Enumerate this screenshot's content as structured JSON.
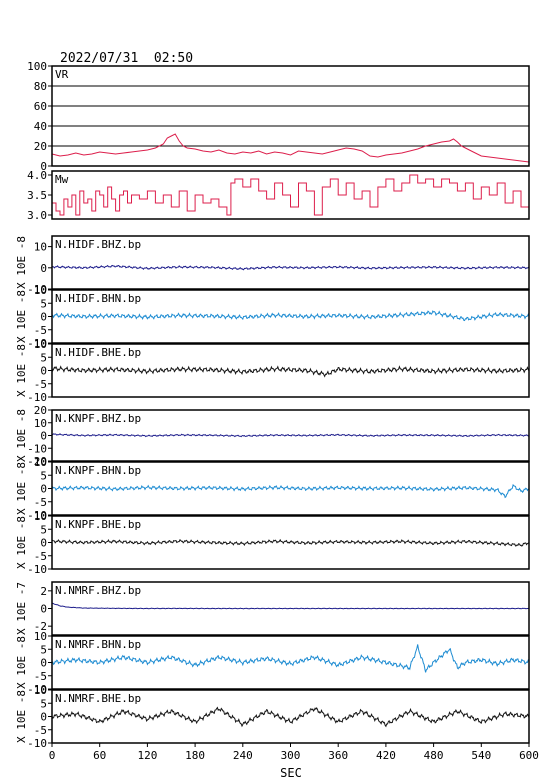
{
  "header": {
    "datetime": "2022/07/31  02:50"
  },
  "chart_data": {
    "type": "line",
    "xlabel": "SEC",
    "xlim": [
      0,
      600
    ],
    "xticks": [
      0,
      60,
      120,
      180,
      240,
      300,
      360,
      420,
      480,
      540,
      600
    ],
    "panels": [
      {
        "label": "VR",
        "ylabel": "",
        "ylim": [
          0,
          100
        ],
        "yticks": [
          0,
          20,
          40,
          60,
          80,
          100
        ],
        "grid": true,
        "color": "#dc1e4b",
        "x": [
          0,
          10,
          20,
          30,
          40,
          50,
          60,
          70,
          80,
          90,
          100,
          110,
          120,
          130,
          140,
          145,
          150,
          155,
          160,
          165,
          170,
          180,
          190,
          200,
          210,
          220,
          230,
          240,
          250,
          260,
          270,
          280,
          290,
          300,
          310,
          320,
          330,
          340,
          350,
          360,
          370,
          380,
          390,
          400,
          410,
          420,
          430,
          440,
          450,
          460,
          470,
          480,
          490,
          500,
          505,
          510,
          515,
          520,
          530,
          540,
          550,
          560,
          570,
          580,
          590,
          600
        ],
        "y": [
          12,
          10,
          11,
          13,
          11,
          12,
          14,
          13,
          12,
          13,
          14,
          15,
          16,
          18,
          22,
          28,
          30,
          32,
          25,
          20,
          18,
          17,
          15,
          14,
          16,
          13,
          12,
          14,
          13,
          15,
          12,
          14,
          13,
          11,
          15,
          14,
          13,
          12,
          14,
          16,
          18,
          17,
          15,
          10,
          9,
          11,
          12,
          13,
          15,
          17,
          20,
          22,
          24,
          25,
          27,
          24,
          20,
          18,
          14,
          10,
          9,
          8,
          7,
          6,
          5,
          4
        ]
      },
      {
        "label": "Mw",
        "ylabel": "",
        "ylim": [
          2.9,
          4.1
        ],
        "yticks": [
          3.0,
          3.5,
          4.0
        ],
        "grid": false,
        "color": "#dc1e4b",
        "x": [
          0,
          5,
          10,
          15,
          20,
          25,
          30,
          35,
          40,
          45,
          50,
          55,
          60,
          65,
          70,
          75,
          80,
          85,
          90,
          95,
          100,
          110,
          120,
          130,
          140,
          150,
          160,
          170,
          180,
          190,
          200,
          210,
          220,
          225,
          230,
          240,
          250,
          260,
          270,
          280,
          290,
          300,
          310,
          320,
          330,
          340,
          350,
          360,
          370,
          380,
          390,
          400,
          410,
          420,
          430,
          440,
          450,
          460,
          470,
          480,
          490,
          500,
          510,
          520,
          530,
          540,
          550,
          560,
          570,
          580,
          590,
          600
        ],
        "y": [
          3.3,
          3.1,
          3.0,
          3.4,
          3.2,
          3.5,
          3.0,
          3.6,
          3.3,
          3.4,
          3.1,
          3.6,
          3.5,
          3.2,
          3.7,
          3.4,
          3.1,
          3.5,
          3.6,
          3.3,
          3.5,
          3.4,
          3.6,
          3.3,
          3.5,
          3.2,
          3.6,
          3.1,
          3.5,
          3.3,
          3.4,
          3.2,
          3.0,
          3.8,
          3.9,
          3.7,
          3.9,
          3.6,
          3.4,
          3.8,
          3.5,
          3.2,
          3.8,
          3.6,
          3.0,
          3.7,
          3.9,
          3.5,
          3.8,
          3.4,
          3.6,
          3.2,
          3.7,
          3.9,
          3.6,
          3.8,
          4.0,
          3.8,
          3.9,
          3.7,
          3.9,
          3.8,
          3.6,
          3.8,
          3.4,
          3.7,
          3.5,
          3.8,
          3.3,
          3.6,
          3.2,
          3.1
        ]
      },
      {
        "label": "N.HIDF.BHZ.bp",
        "ylabel": "X 10E -8",
        "ylim": [
          -10,
          15
        ],
        "yticks": [
          -10,
          0,
          10
        ],
        "grid": false,
        "color": "#1e1e8c",
        "amp": 0.5,
        "x": [
          0,
          40,
          80,
          120,
          160,
          200,
          240,
          280,
          320,
          360,
          400,
          440,
          480,
          520,
          560,
          600
        ],
        "y": [
          0.5,
          0,
          0.8,
          -0.3,
          0.4,
          0.2,
          -0.5,
          0.3,
          0,
          0.4,
          -0.2,
          0.1,
          0.3,
          -0.2,
          0.2,
          0
        ]
      },
      {
        "label": "N.HIDF.BHN.bp",
        "ylabel": "X 10E -8",
        "ylim": [
          -10,
          10
        ],
        "yticks": [
          -10,
          -5,
          0,
          5,
          10
        ],
        "grid": false,
        "color": "#1e8cd2",
        "amp": 0.8,
        "x": [
          0,
          40,
          80,
          120,
          160,
          200,
          240,
          280,
          320,
          360,
          400,
          440,
          480,
          520,
          560,
          600
        ],
        "y": [
          0.5,
          0,
          0.3,
          -0.2,
          0.4,
          0.2,
          -0.3,
          0.5,
          0,
          0.4,
          -0.2,
          0.6,
          1.5,
          -1,
          0.8,
          0
        ]
      },
      {
        "label": "N.HIDF.BHE.bp",
        "ylabel": "X 10E -8",
        "ylim": [
          -10,
          10
        ],
        "yticks": [
          -10,
          -5,
          0,
          5,
          10
        ],
        "grid": false,
        "color": "#141414",
        "amp": 0.9,
        "x": [
          0,
          40,
          80,
          120,
          160,
          200,
          240,
          280,
          320,
          345,
          360,
          400,
          440,
          480,
          520,
          560,
          600
        ],
        "y": [
          0.8,
          0,
          0.4,
          -0.3,
          0.5,
          0.3,
          -0.5,
          0.6,
          0,
          -1.5,
          0.5,
          -0.4,
          0.6,
          -0.3,
          0.4,
          -0.2,
          0.3
        ]
      },
      {
        "label": "N.KNPF.BHZ.bp",
        "ylabel": "X 10E -8",
        "ylim": [
          -20,
          20
        ],
        "yticks": [
          -20,
          -10,
          0,
          10,
          20
        ],
        "grid": false,
        "color": "#1e1e8c",
        "amp": 0.6,
        "x": [
          0,
          40,
          80,
          120,
          160,
          200,
          240,
          280,
          320,
          360,
          400,
          440,
          480,
          520,
          560,
          600
        ],
        "y": [
          1,
          0,
          0.5,
          -0.3,
          0.4,
          0.2,
          -0.4,
          0.3,
          0,
          0.5,
          -0.2,
          0.3,
          0.2,
          -0.3,
          0.4,
          0
        ]
      },
      {
        "label": "N.KNPF.BHN.bp",
        "ylabel": "X 10E -8",
        "ylim": [
          -10,
          10
        ],
        "yticks": [
          -10,
          -5,
          0,
          5,
          10
        ],
        "grid": false,
        "color": "#1e8cd2",
        "amp": 0.7,
        "x": [
          0,
          40,
          80,
          120,
          160,
          200,
          240,
          280,
          320,
          360,
          400,
          440,
          480,
          520,
          560,
          570,
          580,
          590,
          600
        ],
        "y": [
          0,
          0.3,
          -0.2,
          0.4,
          0,
          0.3,
          -0.2,
          0.4,
          -0.1,
          0.3,
          0,
          0.2,
          -0.3,
          0.3,
          -0.5,
          -3,
          1,
          -1,
          0
        ]
      },
      {
        "label": "N.KNPF.BHE.bp",
        "ylabel": "X 10E -8",
        "ylim": [
          -10,
          10
        ],
        "yticks": [
          -10,
          -5,
          0,
          5,
          10
        ],
        "grid": false,
        "color": "#141414",
        "amp": 0.6,
        "x": [
          0,
          40,
          80,
          120,
          160,
          200,
          240,
          280,
          320,
          360,
          400,
          440,
          480,
          520,
          560,
          590,
          600
        ],
        "y": [
          0.5,
          0,
          0.4,
          -0.3,
          0.5,
          0,
          -0.4,
          0.5,
          -0.2,
          0.3,
          0,
          0.4,
          -0.3,
          0.4,
          -0.4,
          -1,
          0
        ]
      },
      {
        "label": "N.NMRF.BHZ.bp",
        "ylabel": "X 10E -7",
        "ylim": [
          -3,
          3
        ],
        "yticks": [
          -2,
          0,
          2
        ],
        "grid": false,
        "color": "#1e1e8c",
        "amp": 0.03,
        "x": [
          0,
          10,
          20,
          40,
          80,
          120,
          160,
          200,
          240,
          280,
          320,
          360,
          400,
          440,
          480,
          520,
          560,
          600
        ],
        "y": [
          0.6,
          0.3,
          0.15,
          0.05,
          0.02,
          0,
          0.01,
          0,
          0,
          0,
          0,
          0,
          0,
          0,
          0,
          0,
          0,
          0
        ]
      },
      {
        "label": "N.NMRF.BHN.bp",
        "ylabel": "X 10E -8",
        "ylim": [
          -10,
          10
        ],
        "yticks": [
          -10,
          -5,
          0,
          5,
          10
        ],
        "grid": false,
        "color": "#1e8cd2",
        "amp": 0.9,
        "x": [
          0,
          30,
          60,
          90,
          120,
          150,
          180,
          210,
          240,
          270,
          300,
          330,
          360,
          390,
          420,
          450,
          460,
          470,
          480,
          500,
          510,
          520,
          540,
          560,
          580,
          600
        ],
        "y": [
          0,
          1,
          0,
          2,
          0,
          2,
          -1,
          2,
          0,
          1.5,
          -0.5,
          2,
          -1,
          2,
          0,
          -2,
          6,
          -3,
          0,
          5,
          -2,
          0,
          1,
          -0.5,
          1,
          0
        ]
      },
      {
        "label": "N.NMRF.BHE.bp",
        "ylabel": "X 10E -8",
        "ylim": [
          -10,
          10
        ],
        "yticks": [
          -10,
          -5,
          0,
          5,
          10
        ],
        "grid": false,
        "color": "#141414",
        "amp": 0.9,
        "x": [
          0,
          30,
          60,
          90,
          120,
          150,
          180,
          210,
          240,
          270,
          300,
          330,
          360,
          390,
          420,
          450,
          480,
          510,
          540,
          570,
          600
        ],
        "y": [
          0,
          1,
          -2,
          2,
          -1,
          2,
          -2,
          3,
          -3,
          2,
          -2,
          3,
          -2,
          2,
          -3,
          2,
          -2,
          2,
          -2,
          1,
          0
        ]
      }
    ]
  }
}
